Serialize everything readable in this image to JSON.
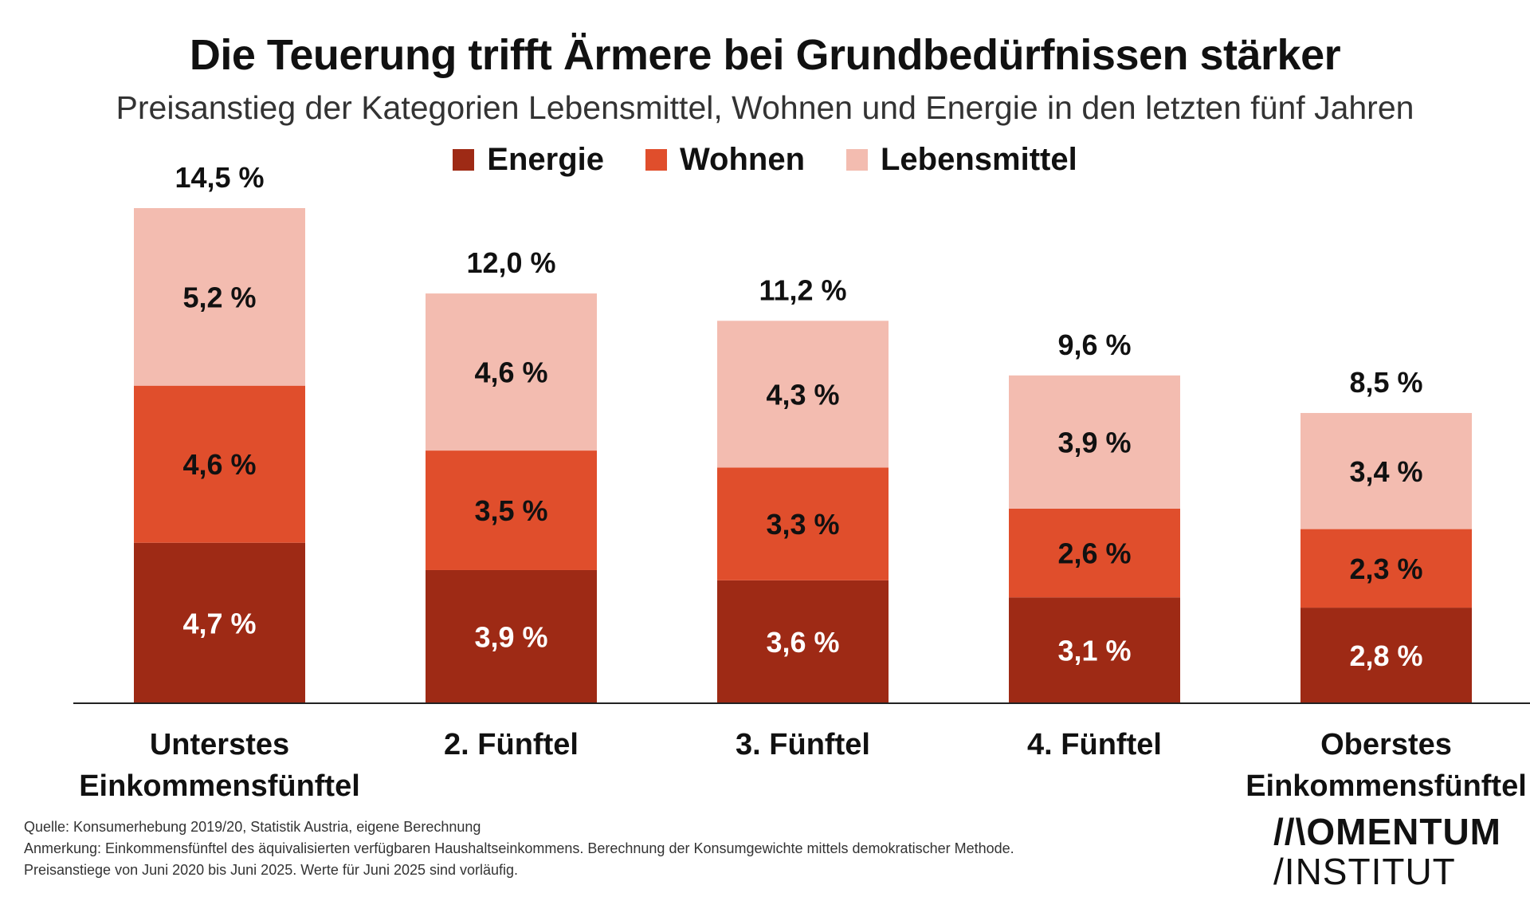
{
  "chart_data": {
    "type": "bar",
    "stacked": true,
    "title": "Die Teuerung trifft Ärmere bei Grundbedürfnissen stärker",
    "subtitle": "Preisanstieg der Kategorien Lebensmittel, Wohnen und Energie in den letzten fünf Jahren",
    "categories": [
      [
        "Unterstes",
        "Einkommensfünftel"
      ],
      [
        "2. Fünftel"
      ],
      [
        "3. Fünftel"
      ],
      [
        "4. Fünftel"
      ],
      [
        "Oberstes",
        "Einkommensfünftel"
      ]
    ],
    "series": [
      {
        "name": "Energie",
        "color": "#9e2a15",
        "values": [
          4.7,
          3.9,
          3.6,
          3.1,
          2.8
        ],
        "labels": [
          "4,7 %",
          "3,9 %",
          "3,6 %",
          "3,1 %",
          "2,8 %"
        ],
        "label_color": "#ffffff"
      },
      {
        "name": "Wohnen",
        "color": "#e04e2c",
        "values": [
          4.6,
          3.5,
          3.3,
          2.6,
          2.3
        ],
        "labels": [
          "4,6 %",
          "3,5 %",
          "3,3 %",
          "2,6 %",
          "2,3 %"
        ],
        "label_color": "#111111"
      },
      {
        "name": "Lebensmittel",
        "color": "#f3bcb0",
        "values": [
          5.2,
          4.6,
          4.3,
          3.9,
          3.4
        ],
        "labels": [
          "5,2 %",
          "4,6 %",
          "4,3 %",
          "3,9 %",
          "3,4 %"
        ],
        "label_color": "#111111"
      }
    ],
    "totals": [
      14.5,
      12.0,
      11.2,
      9.6,
      8.5
    ],
    "total_labels": [
      "14,5 %",
      "12,0 %",
      "11,2 %",
      "9,6 %",
      "8,5 %"
    ],
    "ylim": [
      0,
      14.5
    ],
    "legend_position": "top-center",
    "grid": false
  },
  "footnotes": {
    "source": "Quelle: Konsumerhebung 2019/20, Statistik Austria, eigene Berechnung",
    "note": "Anmerkung: Einkommensfünftel des äquivalisierten verfügbaren Haushaltseinkommens. Berechnung der Konsumgewichte mittels demokratischer Methode.",
    "period": "Preisanstiege von Juni 2020 bis Juni 2025. Werte für Juni 2025 sind vorläufig."
  },
  "logo": {
    "line1": "//\\OMENTUM",
    "line2": "/INSTITUT"
  }
}
